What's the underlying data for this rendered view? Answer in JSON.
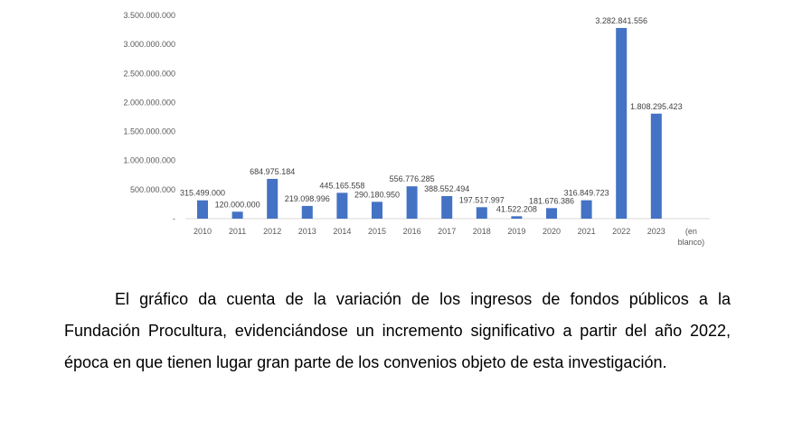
{
  "chart_data": {
    "type": "bar",
    "title": "",
    "xlabel": "",
    "ylabel": "",
    "categories": [
      "2010",
      "2011",
      "2012",
      "2013",
      "2014",
      "2015",
      "2016",
      "2017",
      "2018",
      "2019",
      "2020",
      "2021",
      "2022",
      "2023",
      "(en blanco)"
    ],
    "values": [
      315499000,
      120000000,
      684975184,
      219098996,
      445165558,
      290180950,
      556776285,
      388552494,
      197517997,
      41522208,
      181676386,
      316849723,
      3282841556,
      1808295423,
      null
    ],
    "data_labels": [
      "315.499.000",
      "120.000.000",
      "684.975.184",
      "219.098.996",
      "445.165.558",
      "290.180.950",
      "556.776.285",
      "388.552.494",
      "197.517.997",
      "41.522.208",
      "181.676.386",
      "316.849.723",
      "3.282.841.556",
      "1.808.295.423",
      ""
    ],
    "ylim": [
      0,
      3500000000
    ],
    "yticks": [
      0,
      500000000,
      1000000000,
      1500000000,
      2000000000,
      2500000000,
      3000000000,
      3500000000
    ],
    "ytick_labels": [
      "-",
      "500.000.000",
      "1.000.000.000",
      "1.500.000.000",
      "2.000.000.000",
      "2.500.000.000",
      "3.000.000.000",
      "3.500.000.000"
    ],
    "bar_color": "#4472C4",
    "grid": false,
    "legend": "none"
  },
  "paragraph": {
    "text": "El gráfico da cuenta de la variación de los ingresos de fondos públicos a la Fundación Procultura, evidenciándose un incremento significativo a partir del año 2022, época en que tienen lugar gran parte de los convenios objeto de esta investigación."
  }
}
